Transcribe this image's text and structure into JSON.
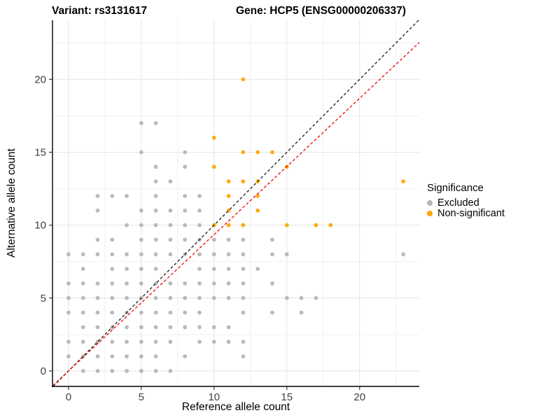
{
  "chart_data": {
    "type": "scatter",
    "title_left": "Variant: rs3131617",
    "title_right": "Gene: HCP5 (ENSG00000206337)",
    "xlabel": "Reference allele count",
    "ylabel": "Alternative allele count",
    "x_ticks": [
      0,
      5,
      10,
      15,
      20
    ],
    "y_ticks": [
      0,
      5,
      10,
      15,
      20
    ],
    "x_minor_ticks": [
      2.5,
      7.5,
      12.5,
      17.5,
      22.5
    ],
    "y_minor_ticks": [
      2.5,
      7.5,
      12.5,
      17.5,
      22.5
    ],
    "xlim": [
      -1.1,
      24.1
    ],
    "ylim": [
      -1.06,
      24.05
    ],
    "grid": true,
    "legend": {
      "title": "Significance",
      "position": "right",
      "items": [
        {
          "label": "Excluded",
          "color": "#b4b4b4"
        },
        {
          "label": "Non-significant",
          "color": "#FFA500"
        }
      ]
    },
    "series": [
      {
        "name": "Excluded",
        "color": "#b4b4b4",
        "points": [
          [
            5,
            17
          ],
          [
            6,
            17
          ],
          [
            5,
            15
          ],
          [
            8,
            15
          ],
          [
            6,
            14
          ],
          [
            8,
            14
          ],
          [
            6,
            13
          ],
          [
            7,
            13
          ],
          [
            2,
            12
          ],
          [
            3,
            12
          ],
          [
            4,
            12
          ],
          [
            6,
            12
          ],
          [
            8,
            12
          ],
          [
            9,
            12
          ],
          [
            2,
            11
          ],
          [
            5,
            11
          ],
          [
            6,
            11
          ],
          [
            7,
            11
          ],
          [
            8,
            11
          ],
          [
            9,
            11
          ],
          [
            4,
            10
          ],
          [
            5,
            10
          ],
          [
            6,
            10
          ],
          [
            7,
            10
          ],
          [
            8,
            10
          ],
          [
            9,
            10
          ],
          [
            2,
            9
          ],
          [
            3,
            9
          ],
          [
            5,
            9
          ],
          [
            6,
            9
          ],
          [
            7,
            9
          ],
          [
            8,
            9
          ],
          [
            9,
            9
          ],
          [
            10,
            9
          ],
          [
            11,
            9
          ],
          [
            12,
            9
          ],
          [
            14,
            9
          ],
          [
            0,
            8
          ],
          [
            1,
            8
          ],
          [
            2,
            8
          ],
          [
            3,
            8
          ],
          [
            4,
            8
          ],
          [
            5,
            8
          ],
          [
            6,
            8
          ],
          [
            7,
            8
          ],
          [
            8,
            8
          ],
          [
            9,
            8
          ],
          [
            10,
            8
          ],
          [
            11,
            8
          ],
          [
            12,
            8
          ],
          [
            14,
            8
          ],
          [
            15,
            8
          ],
          [
            23,
            8
          ],
          [
            1,
            7
          ],
          [
            3,
            7
          ],
          [
            4,
            7
          ],
          [
            5,
            7
          ],
          [
            6,
            7
          ],
          [
            9,
            7
          ],
          [
            10,
            7
          ],
          [
            11,
            7
          ],
          [
            12,
            7
          ],
          [
            13,
            7
          ],
          [
            0,
            6
          ],
          [
            1,
            6
          ],
          [
            2,
            6
          ],
          [
            3,
            6
          ],
          [
            4,
            6
          ],
          [
            5,
            6
          ],
          [
            6,
            6
          ],
          [
            7,
            6
          ],
          [
            8,
            6
          ],
          [
            9,
            6
          ],
          [
            10,
            6
          ],
          [
            11,
            6
          ],
          [
            12,
            6
          ],
          [
            14,
            6
          ],
          [
            0,
            5
          ],
          [
            1,
            5
          ],
          [
            2,
            5
          ],
          [
            3,
            5
          ],
          [
            4,
            5
          ],
          [
            5,
            5
          ],
          [
            6,
            5
          ],
          [
            7,
            5
          ],
          [
            8,
            5
          ],
          [
            9,
            5
          ],
          [
            10,
            5
          ],
          [
            11,
            5
          ],
          [
            12,
            5
          ],
          [
            15,
            5
          ],
          [
            16,
            5
          ],
          [
            17,
            5
          ],
          [
            0,
            4
          ],
          [
            1,
            4
          ],
          [
            2,
            4
          ],
          [
            3,
            4
          ],
          [
            4,
            4
          ],
          [
            5,
            4
          ],
          [
            6,
            4
          ],
          [
            7,
            4
          ],
          [
            8,
            4
          ],
          [
            9,
            4
          ],
          [
            12,
            4
          ],
          [
            14,
            4
          ],
          [
            16,
            4
          ],
          [
            1,
            3
          ],
          [
            2,
            3
          ],
          [
            3,
            3
          ],
          [
            4,
            3
          ],
          [
            5,
            3
          ],
          [
            6,
            3
          ],
          [
            7,
            3
          ],
          [
            8,
            3
          ],
          [
            9,
            3
          ],
          [
            10,
            3
          ],
          [
            11,
            3
          ],
          [
            0,
            2
          ],
          [
            1,
            2
          ],
          [
            2,
            2
          ],
          [
            3,
            2
          ],
          [
            4,
            2
          ],
          [
            5,
            2
          ],
          [
            6,
            2
          ],
          [
            7,
            2
          ],
          [
            9,
            2
          ],
          [
            10,
            2
          ],
          [
            11,
            2
          ],
          [
            12,
            2
          ],
          [
            0,
            1
          ],
          [
            1,
            1
          ],
          [
            2,
            1
          ],
          [
            3,
            1
          ],
          [
            4,
            1
          ],
          [
            5,
            1
          ],
          [
            6,
            1
          ],
          [
            8,
            1
          ],
          [
            12,
            1
          ],
          [
            1,
            0
          ],
          [
            2,
            0
          ],
          [
            3,
            0
          ],
          [
            4,
            0
          ],
          [
            5,
            0
          ],
          [
            6,
            0
          ],
          [
            7,
            0
          ]
        ]
      },
      {
        "name": "Non-significant",
        "color": "#FFA500",
        "points": [
          [
            12,
            20
          ],
          [
            10,
            16
          ],
          [
            12,
            15
          ],
          [
            13,
            15
          ],
          [
            14,
            15
          ],
          [
            10,
            14
          ],
          [
            15,
            14
          ],
          [
            11,
            13
          ],
          [
            12,
            13
          ],
          [
            13,
            13
          ],
          [
            23,
            13
          ],
          [
            11,
            12
          ],
          [
            13,
            12
          ],
          [
            11,
            11
          ],
          [
            13,
            11
          ],
          [
            10,
            10
          ],
          [
            11,
            10
          ],
          [
            12,
            10
          ],
          [
            15,
            10
          ],
          [
            17,
            10
          ],
          [
            18,
            10
          ]
        ]
      }
    ],
    "ref_lines": [
      {
        "name": "identity-line",
        "color": "#1a1a1a",
        "dash": "4 3",
        "from": [
          -1.06,
          -1.06
        ],
        "to": [
          24.05,
          24.05
        ]
      },
      {
        "name": "fit-line",
        "color": "#f40000",
        "dash": "4 3",
        "from": [
          -1.06,
          -0.99
        ],
        "to": [
          24.1,
          22.53
        ]
      }
    ],
    "colors": {
      "grid_major": "#e4e4e4",
      "grid_minor": "#efefef",
      "axis": "#000000",
      "tick_text": "#404040",
      "point_radius": 2.9
    }
  }
}
